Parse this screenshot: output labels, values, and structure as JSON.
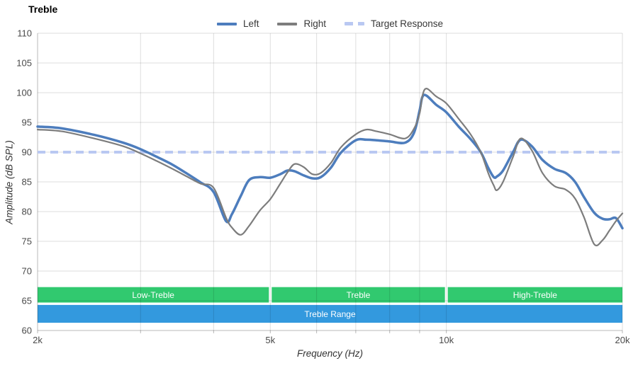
{
  "title": "Treble",
  "legend": {
    "items": [
      {
        "label": "Left",
        "color": "#4d7dbd",
        "style": "solid"
      },
      {
        "label": "Right",
        "color": "#7d7d7d",
        "style": "solid"
      },
      {
        "label": "Target Response",
        "color": "#b9c8f2",
        "style": "dashed"
      }
    ]
  },
  "axes": {
    "x_label": "Frequency (Hz)",
    "y_label": "Amplitude (dB SPL)"
  },
  "chart_data": {
    "type": "line",
    "title": "Treble",
    "xlabel": "Frequency (Hz)",
    "ylabel": "Amplitude (dB SPL)",
    "x_scale": "log",
    "xlim": [
      2000,
      20000
    ],
    "ylim": [
      60,
      110
    ],
    "grid": true,
    "legend_position": "top-center",
    "y_ticks": [
      60,
      65,
      70,
      75,
      80,
      85,
      90,
      95,
      100,
      105,
      110
    ],
    "x_major_ticks": [
      {
        "f": 2000,
        "label": "2k"
      },
      {
        "f": 5000,
        "label": "5k"
      },
      {
        "f": 10000,
        "label": "10k"
      },
      {
        "f": 20000,
        "label": "20k"
      }
    ],
    "x_minor_gridlines": [
      3000,
      4000,
      6000,
      7000,
      8000,
      9000
    ],
    "target_response_db": 90,
    "x_hz": [
      2000,
      2200,
      2500,
      2800,
      3000,
      3200,
      3400,
      3600,
      3800,
      4000,
      4200,
      4300,
      4450,
      4600,
      4800,
      5000,
      5200,
      5350,
      5500,
      5700,
      5900,
      6100,
      6350,
      6600,
      7000,
      7300,
      7600,
      8000,
      8500,
      8800,
      9000,
      9100,
      9250,
      9600,
      10000,
      10500,
      11000,
      11450,
      11800,
      12050,
      12200,
      12500,
      13000,
      13400,
      14000,
      14600,
      15300,
      16000,
      16600,
      17200,
      17900,
      18500,
      19000,
      19500,
      20000
    ],
    "series": [
      {
        "name": "Left",
        "color": "#4d7dbd",
        "width": 3.5,
        "values": [
          94.3,
          94.0,
          92.9,
          91.6,
          90.5,
          89.2,
          87.9,
          86.4,
          84.9,
          83.3,
          78.4,
          79.6,
          82.6,
          85.3,
          85.8,
          85.7,
          86.3,
          86.9,
          86.8,
          86.1,
          85.6,
          85.8,
          87.4,
          89.9,
          92.0,
          92.1,
          92.0,
          91.8,
          91.6,
          93.2,
          97.0,
          99.3,
          99.5,
          98.0,
          96.7,
          94.3,
          92.2,
          90.0,
          87.3,
          85.8,
          85.9,
          86.9,
          90.0,
          92.1,
          91.0,
          88.7,
          87.2,
          86.5,
          85.0,
          82.4,
          79.8,
          78.8,
          78.7,
          78.9,
          77.2
        ]
      },
      {
        "name": "Right",
        "color": "#7d7d7d",
        "width": 2.2,
        "values": [
          93.8,
          93.5,
          92.3,
          91.0,
          89.8,
          88.5,
          87.2,
          85.9,
          84.7,
          84.0,
          79.0,
          77.3,
          76.1,
          77.6,
          80.2,
          82.1,
          84.7,
          86.6,
          88.0,
          87.5,
          86.3,
          86.5,
          88.2,
          90.8,
          93.0,
          93.8,
          93.5,
          93.0,
          92.3,
          93.9,
          96.5,
          99.5,
          100.7,
          99.4,
          98.2,
          95.6,
          93.0,
          90.0,
          86.4,
          84.4,
          83.6,
          85.0,
          89.2,
          92.3,
          90.3,
          86.5,
          84.3,
          83.7,
          82.2,
          79.0,
          74.5,
          75.2,
          76.8,
          78.4,
          79.7
        ]
      }
    ],
    "bands": {
      "range_segments": {
        "color": "#31c96f",
        "text_color": "#ffffff",
        "db_top": 67.3,
        "db_bottom": 64.7,
        "segments": [
          {
            "from": 2000,
            "to": 5000,
            "label": "Low-Treble"
          },
          {
            "from": 5000,
            "to": 10000,
            "label": "Treble"
          },
          {
            "from": 10000,
            "to": 20000,
            "label": "High-Treble"
          }
        ]
      },
      "full_range": {
        "color": "#3399de",
        "text_color": "#ffffff",
        "db_top": 64.3,
        "db_bottom": 61.3,
        "from": 2000,
        "to": 20000,
        "label": "Treble Range"
      }
    },
    "colors": {
      "target_line": "#b9c8f2",
      "gridline": "rgba(0,0,0,0.13)",
      "axis_line": "rgba(0,0,0,0.28)",
      "tick_label": "#4a4a4a"
    }
  }
}
